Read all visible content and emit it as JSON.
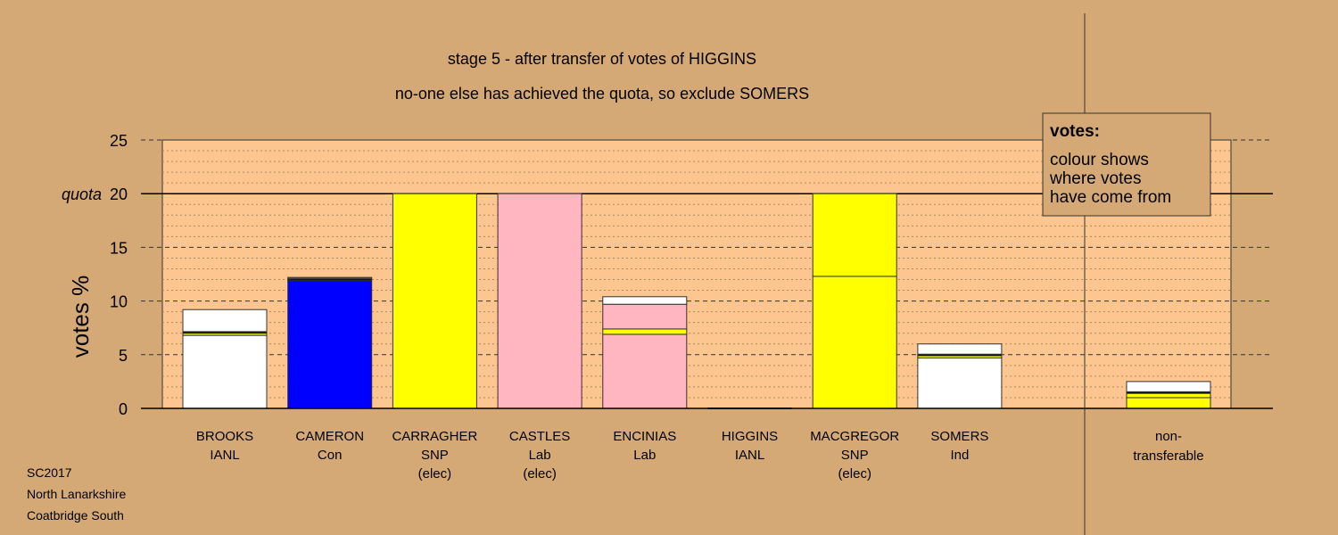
{
  "chart_data": {
    "type": "bar",
    "title": "stage 5 - after transfer of votes of HIGGINS",
    "subtitle": "no-one else has achieved the quota, so exclude SOMERS",
    "ylabel": "votes %",
    "ylim": [
      0,
      25
    ],
    "yticks": [
      0,
      5,
      10,
      15,
      20,
      25
    ],
    "quota": {
      "label": "quota",
      "value": 20
    },
    "grid": true,
    "legend": {
      "position": "top-right",
      "title": "votes:",
      "lines": [
        "colour shows",
        "where votes",
        "have come from"
      ]
    },
    "categories": [
      {
        "name": "BROOKS",
        "party": "IANL",
        "status": "",
        "segments": [
          {
            "color": "#ffffff",
            "value": 6.8
          },
          {
            "color": "#ffff00",
            "value": 0.2
          },
          {
            "color": "#000000",
            "value": 0.15
          },
          {
            "color": "#ffffff",
            "value": 2.05
          }
        ]
      },
      {
        "name": "CAMERON",
        "party": "Con",
        "status": "",
        "segments": [
          {
            "color": "#0000ff",
            "value": 11.9
          },
          {
            "color": "#000000",
            "value": 0.15
          },
          {
            "color": "#555555",
            "value": 0.15
          }
        ]
      },
      {
        "name": "CARRAGHER",
        "party": "SNP",
        "status": "(elec)",
        "segments": [
          {
            "color": "#ffff00",
            "value": 20
          }
        ]
      },
      {
        "name": "CASTLES",
        "party": "Lab",
        "status": "(elec)",
        "segments": [
          {
            "color": "#ffb6c1",
            "value": 20
          }
        ]
      },
      {
        "name": "ENCINIAS",
        "party": "Lab",
        "status": "",
        "segments": [
          {
            "color": "#ffb6c1",
            "value": 6.9
          },
          {
            "color": "#ffff00",
            "value": 0.5
          },
          {
            "color": "#ffb6c1",
            "value": 2.3
          },
          {
            "color": "#ffffff",
            "value": 0.7
          }
        ]
      },
      {
        "name": "HIGGINS",
        "party": "IANL",
        "status": "",
        "segments": []
      },
      {
        "name": "MACGREGOR",
        "party": "SNP",
        "status": "(elec)",
        "segments": [
          {
            "color": "#ffff00",
            "value": 12.3
          },
          {
            "color": "#ffff00",
            "value": 7.7
          }
        ]
      },
      {
        "name": "SOMERS",
        "party": "Ind",
        "status": "",
        "segments": [
          {
            "color": "#ffffff",
            "value": 4.7
          },
          {
            "color": "#ffff00",
            "value": 0.2
          },
          {
            "color": "#000000",
            "value": 0.15
          },
          {
            "color": "#ffffff",
            "value": 0.95
          }
        ]
      }
    ],
    "non_transferable": {
      "label_line1": "non-",
      "label_line2": "transferable",
      "segments": [
        {
          "color": "#ffff00",
          "value": 1.0
        },
        {
          "color": "#ffff00",
          "value": 0.4
        },
        {
          "color": "#000000",
          "value": 0.15
        },
        {
          "color": "#ffffff",
          "value": 0.95
        }
      ]
    }
  },
  "footer": {
    "line1": "SC2017",
    "line2": "North Lanarkshire",
    "line3": "Coatbridge South"
  },
  "colors": {
    "background": "#d4a976",
    "plot_area": "#fdc590",
    "legend_box": "#d4a976"
  }
}
